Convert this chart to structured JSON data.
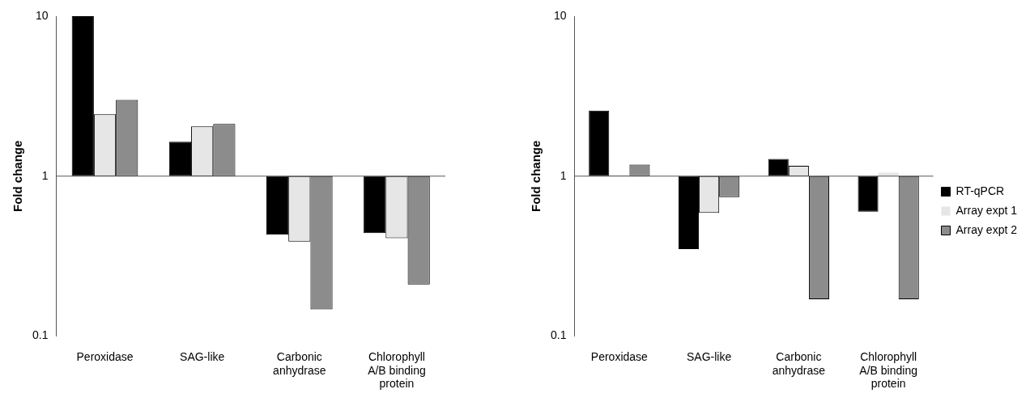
{
  "chart_data": [
    {
      "type": "bar",
      "ylabel": "Fold change",
      "categories": [
        "Peroxidase",
        "SAG-like",
        "Carbonic anhydrase",
        "Chlorophyll A/B binding protein"
      ],
      "log": true,
      "ylim": [
        0.1,
        10
      ],
      "yticks": [
        0.1,
        1,
        10
      ],
      "series": [
        {
          "color": "#000000",
          "base": [
            1,
            1,
            1,
            1
          ],
          "values": [
            9,
            0.64,
            -0.57,
            -0.56
          ]
        },
        {
          "color": "#e6e6e6",
          "base": [
            1,
            1,
            1,
            1
          ],
          "values": [
            1.44,
            1.05,
            -0.61,
            -0.59
          ]
        },
        {
          "color": "#8c8c8c",
          "base": [
            1,
            1,
            1,
            1
          ],
          "values": [
            2.0,
            1.12,
            -0.853,
            -0.79
          ]
        }
      ]
    },
    {
      "type": "bar",
      "ylabel": "Fold change",
      "categories": [
        "Peroxidase",
        "SAG-like",
        "Carbonic anhydrase",
        "Chlorophyll A/B binding protein"
      ],
      "log": true,
      "ylim": [
        0.1,
        10
      ],
      "yticks": [
        0.1,
        1,
        10
      ],
      "legend": "right",
      "series": [
        {
          "name": "RT-qPCR",
          "color": "#000000",
          "base": [
            1,
            1,
            1,
            1
          ],
          "values": [
            1.57,
            -0.65,
            0.28,
            -0.4
          ]
        },
        {
          "name": "Array expt 1",
          "color": "#e6e6e6",
          "base": [
            1,
            1,
            1,
            1
          ],
          "values": [
            0.02,
            -0.41,
            0.16,
            0.05
          ]
        },
        {
          "name": "Array expt 2",
          "color": "#8c8c8c",
          "base": [
            1,
            1,
            1,
            1
          ],
          "values": [
            0.18,
            -0.26,
            -0.83,
            -0.83
          ]
        }
      ]
    }
  ]
}
